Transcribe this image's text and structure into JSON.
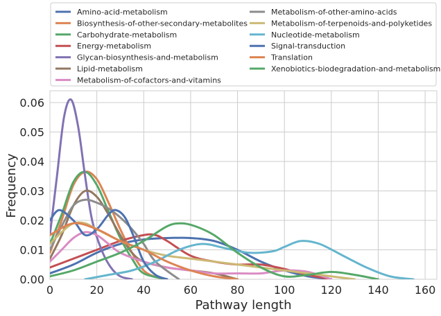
{
  "chart_data": {
    "type": "line",
    "title": "",
    "xlabel": "Pathway length",
    "ylabel": "Frequency",
    "xlim": [
      0,
      165
    ],
    "ylim": [
      0,
      0.064
    ],
    "xticks": [
      0,
      20,
      40,
      60,
      80,
      100,
      120,
      140,
      160
    ],
    "yticks": [
      0.0,
      0.01,
      0.02,
      0.03,
      0.04,
      0.05,
      0.06
    ],
    "ytick_labels": [
      "0.00",
      "0.01",
      "0.02",
      "0.03",
      "0.04",
      "0.05",
      "0.06"
    ],
    "grid": true,
    "legend_position": "top",
    "legend_columns": 2,
    "series": [
      {
        "name": "Amino-acid-metabolism",
        "color": "#4c72b0",
        "x": [
          0,
          10,
          20,
          30,
          40,
          50,
          60,
          70,
          80,
          90,
          100,
          110,
          120
        ],
        "y": [
          0.002,
          0.005,
          0.009,
          0.012,
          0.0135,
          0.014,
          0.014,
          0.013,
          0.01,
          0.006,
          0.003,
          0.001,
          0.0
        ]
      },
      {
        "name": "Biosynthesis-of-other-secondary-metabolites",
        "color": "#dd8452",
        "x": [
          0,
          5,
          10,
          15,
          20,
          25,
          30,
          35,
          40,
          45,
          50
        ],
        "y": [
          0.009,
          0.02,
          0.032,
          0.0365,
          0.034,
          0.026,
          0.017,
          0.009,
          0.003,
          0.0008,
          0.0
        ]
      },
      {
        "name": "Carbohydrate-metabolism",
        "color": "#55a868",
        "x": [
          0,
          5,
          10,
          15,
          20,
          25,
          30,
          35,
          40,
          50
        ],
        "y": [
          0.012,
          0.022,
          0.033,
          0.0365,
          0.032,
          0.023,
          0.014,
          0.007,
          0.002,
          0.0
        ]
      },
      {
        "name": "Energy-metabolism",
        "color": "#c44e52",
        "x": [
          0,
          10,
          20,
          30,
          40,
          45,
          50,
          60,
          70,
          80,
          90,
          100,
          110,
          120
        ],
        "y": [
          0.004,
          0.007,
          0.01,
          0.013,
          0.015,
          0.015,
          0.013,
          0.008,
          0.006,
          0.005,
          0.005,
          0.0035,
          0.0015,
          0.0
        ]
      },
      {
        "name": "Glycan-biosynthesis-and-metabolism",
        "color": "#8172b3",
        "x": [
          0,
          3,
          6,
          9,
          12,
          15,
          18,
          22,
          26,
          30,
          35
        ],
        "y": [
          0.015,
          0.035,
          0.055,
          0.061,
          0.052,
          0.035,
          0.02,
          0.01,
          0.004,
          0.001,
          0.0
        ]
      },
      {
        "name": "Lipid-metabolism",
        "color": "#937860",
        "x": [
          0,
          5,
          10,
          15,
          20,
          25,
          30,
          35,
          40,
          50,
          60,
          70,
          80
        ],
        "y": [
          0.007,
          0.015,
          0.025,
          0.03,
          0.028,
          0.022,
          0.015,
          0.009,
          0.006,
          0.004,
          0.003,
          0.002,
          0.0
        ]
      },
      {
        "name": "Metabolism-of-cofactors-and-vitamins",
        "color": "#da8bc3",
        "x": [
          0,
          5,
          10,
          15,
          20,
          25,
          30,
          40,
          50,
          60,
          70,
          80,
          90,
          100,
          110,
          120
        ],
        "y": [
          0.006,
          0.01,
          0.014,
          0.016,
          0.015,
          0.012,
          0.009,
          0.006,
          0.004,
          0.003,
          0.002,
          0.002,
          0.002,
          0.003,
          0.0025,
          0.0
        ]
      },
      {
        "name": "Metabolism-of-other-amino-acids",
        "color": "#8c8c8c",
        "x": [
          0,
          5,
          10,
          15,
          20,
          25,
          30,
          35,
          40,
          45,
          55
        ],
        "y": [
          0.01,
          0.018,
          0.025,
          0.027,
          0.026,
          0.024,
          0.021,
          0.017,
          0.012,
          0.006,
          0.0
        ]
      },
      {
        "name": "Metabolism-of-terpenoids-and-polyketides",
        "color": "#ccb974",
        "x": [
          0,
          5,
          10,
          15,
          20,
          30,
          40,
          50,
          60,
          70,
          80,
          90,
          100,
          110,
          120,
          130
        ],
        "y": [
          0.012,
          0.016,
          0.019,
          0.019,
          0.017,
          0.013,
          0.01,
          0.008,
          0.007,
          0.006,
          0.005,
          0.004,
          0.003,
          0.002,
          0.001,
          0.0
        ]
      },
      {
        "name": "Nucleotide-metabolism",
        "color": "#64b5cd",
        "x": [
          15,
          25,
          35,
          45,
          55,
          65,
          75,
          85,
          95,
          100,
          107,
          115,
          125,
          135,
          145,
          155
        ],
        "y": [
          0.0,
          0.0015,
          0.003,
          0.006,
          0.01,
          0.012,
          0.0105,
          0.009,
          0.0095,
          0.011,
          0.013,
          0.012,
          0.008,
          0.004,
          0.001,
          0.0
        ]
      },
      {
        "name": "Signal-transduction",
        "color": "#4c72b0",
        "x": [
          0,
          4,
          10,
          15,
          20,
          25,
          28,
          32,
          36,
          40,
          45,
          50
        ],
        "y": [
          0.02,
          0.0235,
          0.02,
          0.015,
          0.017,
          0.022,
          0.0235,
          0.021,
          0.014,
          0.006,
          0.0015,
          0.0
        ]
      },
      {
        "name": "Translation",
        "color": "#dd8452",
        "x": [
          0,
          10,
          20,
          30,
          40,
          50,
          60,
          70,
          80
        ],
        "y": [
          0.015,
          0.019,
          0.017,
          0.013,
          0.01,
          0.006,
          0.003,
          0.001,
          0.0
        ]
      },
      {
        "name": "Xenobiotics-biodegradation-and-metabolism",
        "color": "#55a868",
        "x": [
          0,
          10,
          20,
          30,
          40,
          50,
          56,
          62,
          70,
          80,
          90,
          100,
          110,
          120,
          130,
          140
        ],
        "y": [
          0.001,
          0.003,
          0.006,
          0.009,
          0.013,
          0.018,
          0.019,
          0.018,
          0.015,
          0.009,
          0.004,
          0.001,
          0.0015,
          0.0025,
          0.0015,
          0.0
        ]
      }
    ]
  }
}
